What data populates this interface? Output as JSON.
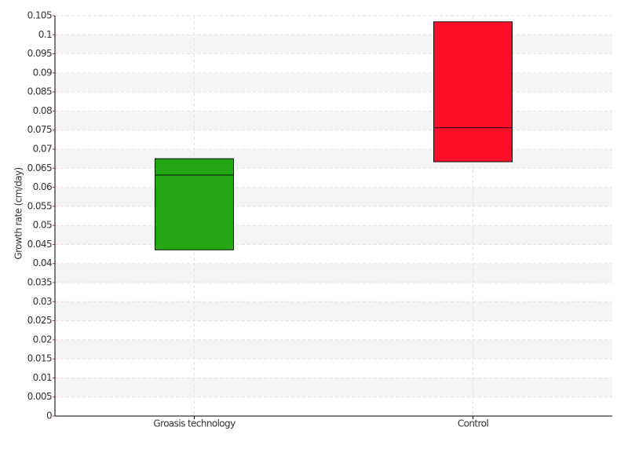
{
  "chart_data": {
    "type": "box",
    "y_label": "Growth rate (cm/day)",
    "categories": [
      "Groasis technology",
      "Control"
    ],
    "boxes": [
      {
        "q1": 0.0436,
        "median": 0.0632,
        "q3": 0.0675,
        "color": "#22a712"
      },
      {
        "q1": 0.0667,
        "median": 0.0756,
        "q3": 0.1034,
        "color": "#ff0c28"
      }
    ],
    "ylim": [
      0,
      0.105
    ],
    "yticks": [
      0,
      0.005,
      0.01,
      0.015,
      0.02,
      0.025,
      0.03,
      0.035,
      0.04,
      0.045,
      0.05,
      0.055,
      0.06,
      0.065,
      0.07,
      0.075,
      0.08,
      0.085,
      0.09,
      0.095,
      0.1,
      0.105
    ],
    "grid": true
  }
}
